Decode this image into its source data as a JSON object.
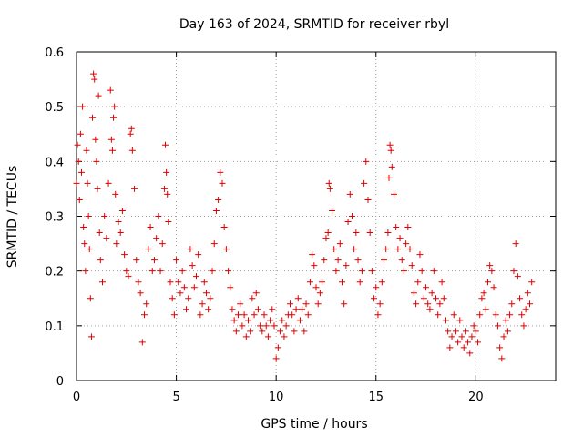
{
  "chart_data": {
    "type": "scatter",
    "title": "Day 163 of 2024, SRMTID for receiver rbyl",
    "xlabel": "GPS time / hours",
    "ylabel": "SRMTID / TECUs",
    "xlim": [
      0,
      24
    ],
    "ylim": [
      0,
      0.6
    ],
    "x_ticks": [
      0,
      5,
      10,
      15,
      20
    ],
    "y_ticks": [
      0,
      0.1,
      0.2,
      0.3,
      0.4,
      0.5,
      0.6
    ],
    "x_tick_labels": [
      "0",
      "5",
      "10",
      "15",
      "20"
    ],
    "y_tick_labels": [
      "0",
      "0.1",
      "0.2",
      "0.3",
      "0.4",
      "0.5",
      "0.6"
    ],
    "grid": true,
    "marker": "+",
    "color": "#e00000",
    "series": [
      {
        "name": "SRMTID",
        "points": [
          [
            0.0,
            0.36
          ],
          [
            0.05,
            0.43
          ],
          [
            0.1,
            0.4
          ],
          [
            0.15,
            0.33
          ],
          [
            0.2,
            0.45
          ],
          [
            0.25,
            0.38
          ],
          [
            0.3,
            0.5
          ],
          [
            0.35,
            0.28
          ],
          [
            0.4,
            0.25
          ],
          [
            0.45,
            0.2
          ],
          [
            0.5,
            0.42
          ],
          [
            0.55,
            0.36
          ],
          [
            0.6,
            0.3
          ],
          [
            0.65,
            0.24
          ],
          [
            0.7,
            0.15
          ],
          [
            0.75,
            0.08
          ],
          [
            0.8,
            0.48
          ],
          [
            0.85,
            0.56
          ],
          [
            0.9,
            0.55
          ],
          [
            0.95,
            0.44
          ],
          [
            1.0,
            0.4
          ],
          [
            1.05,
            0.35
          ],
          [
            1.1,
            0.52
          ],
          [
            1.15,
            0.27
          ],
          [
            1.2,
            0.22
          ],
          [
            1.3,
            0.18
          ],
          [
            1.4,
            0.3
          ],
          [
            1.5,
            0.26
          ],
          [
            1.6,
            0.36
          ],
          [
            1.7,
            0.53
          ],
          [
            1.75,
            0.44
          ],
          [
            1.8,
            0.42
          ],
          [
            1.85,
            0.48
          ],
          [
            1.9,
            0.5
          ],
          [
            1.95,
            0.34
          ],
          [
            2.0,
            0.25
          ],
          [
            2.1,
            0.29
          ],
          [
            2.2,
            0.27
          ],
          [
            2.3,
            0.31
          ],
          [
            2.4,
            0.23
          ],
          [
            2.5,
            0.2
          ],
          [
            2.6,
            0.19
          ],
          [
            2.7,
            0.45
          ],
          [
            2.75,
            0.46
          ],
          [
            2.8,
            0.42
          ],
          [
            2.9,
            0.35
          ],
          [
            3.0,
            0.22
          ],
          [
            3.1,
            0.18
          ],
          [
            3.2,
            0.16
          ],
          [
            3.3,
            0.07
          ],
          [
            3.4,
            0.12
          ],
          [
            3.5,
            0.14
          ],
          [
            3.6,
            0.24
          ],
          [
            3.7,
            0.28
          ],
          [
            3.8,
            0.2
          ],
          [
            3.9,
            0.22
          ],
          [
            4.0,
            0.26
          ],
          [
            4.1,
            0.3
          ],
          [
            4.2,
            0.2
          ],
          [
            4.3,
            0.25
          ],
          [
            4.4,
            0.35
          ],
          [
            4.45,
            0.43
          ],
          [
            4.5,
            0.38
          ],
          [
            4.55,
            0.34
          ],
          [
            4.6,
            0.29
          ],
          [
            4.7,
            0.18
          ],
          [
            4.8,
            0.15
          ],
          [
            4.9,
            0.12
          ],
          [
            5.0,
            0.22
          ],
          [
            5.1,
            0.18
          ],
          [
            5.2,
            0.16
          ],
          [
            5.3,
            0.2
          ],
          [
            5.4,
            0.17
          ],
          [
            5.5,
            0.13
          ],
          [
            5.6,
            0.15
          ],
          [
            5.7,
            0.24
          ],
          [
            5.8,
            0.21
          ],
          [
            5.9,
            0.17
          ],
          [
            6.0,
            0.19
          ],
          [
            6.1,
            0.23
          ],
          [
            6.2,
            0.12
          ],
          [
            6.3,
            0.14
          ],
          [
            6.4,
            0.18
          ],
          [
            6.5,
            0.16
          ],
          [
            6.6,
            0.13
          ],
          [
            6.7,
            0.15
          ],
          [
            6.8,
            0.2
          ],
          [
            6.9,
            0.25
          ],
          [
            7.0,
            0.31
          ],
          [
            7.1,
            0.33
          ],
          [
            7.2,
            0.38
          ],
          [
            7.3,
            0.36
          ],
          [
            7.4,
            0.28
          ],
          [
            7.5,
            0.24
          ],
          [
            7.6,
            0.2
          ],
          [
            7.7,
            0.17
          ],
          [
            7.8,
            0.13
          ],
          [
            7.9,
            0.11
          ],
          [
            8.0,
            0.09
          ],
          [
            8.1,
            0.12
          ],
          [
            8.2,
            0.14
          ],
          [
            8.3,
            0.1
          ],
          [
            8.4,
            0.12
          ],
          [
            8.5,
            0.08
          ],
          [
            8.6,
            0.11
          ],
          [
            8.7,
            0.09
          ],
          [
            8.8,
            0.15
          ],
          [
            8.9,
            0.12
          ],
          [
            9.0,
            0.16
          ],
          [
            9.1,
            0.13
          ],
          [
            9.2,
            0.1
          ],
          [
            9.3,
            0.09
          ],
          [
            9.4,
            0.12
          ],
          [
            9.5,
            0.1
          ],
          [
            9.6,
            0.08
          ],
          [
            9.7,
            0.11
          ],
          [
            9.8,
            0.13
          ],
          [
            9.9,
            0.1
          ],
          [
            10.0,
            0.04
          ],
          [
            10.1,
            0.06
          ],
          [
            10.2,
            0.09
          ],
          [
            10.3,
            0.11
          ],
          [
            10.4,
            0.08
          ],
          [
            10.5,
            0.1
          ],
          [
            10.6,
            0.12
          ],
          [
            10.7,
            0.14
          ],
          [
            10.8,
            0.12
          ],
          [
            10.9,
            0.09
          ],
          [
            11.0,
            0.13
          ],
          [
            11.1,
            0.15
          ],
          [
            11.2,
            0.11
          ],
          [
            11.3,
            0.13
          ],
          [
            11.4,
            0.09
          ],
          [
            11.5,
            0.14
          ],
          [
            11.6,
            0.12
          ],
          [
            11.7,
            0.18
          ],
          [
            11.8,
            0.23
          ],
          [
            11.9,
            0.21
          ],
          [
            12.0,
            0.17
          ],
          [
            12.1,
            0.14
          ],
          [
            12.2,
            0.16
          ],
          [
            12.3,
            0.18
          ],
          [
            12.4,
            0.22
          ],
          [
            12.5,
            0.26
          ],
          [
            12.6,
            0.27
          ],
          [
            12.65,
            0.36
          ],
          [
            12.7,
            0.35
          ],
          [
            12.8,
            0.31
          ],
          [
            12.9,
            0.24
          ],
          [
            13.0,
            0.2
          ],
          [
            13.1,
            0.22
          ],
          [
            13.2,
            0.25
          ],
          [
            13.3,
            0.18
          ],
          [
            13.4,
            0.14
          ],
          [
            13.5,
            0.21
          ],
          [
            13.6,
            0.29
          ],
          [
            13.7,
            0.34
          ],
          [
            13.8,
            0.3
          ],
          [
            13.9,
            0.24
          ],
          [
            14.0,
            0.27
          ],
          [
            14.1,
            0.22
          ],
          [
            14.2,
            0.18
          ],
          [
            14.3,
            0.2
          ],
          [
            14.4,
            0.36
          ],
          [
            14.5,
            0.4
          ],
          [
            14.6,
            0.33
          ],
          [
            14.7,
            0.27
          ],
          [
            14.8,
            0.2
          ],
          [
            14.9,
            0.15
          ],
          [
            15.0,
            0.17
          ],
          [
            15.1,
            0.12
          ],
          [
            15.2,
            0.14
          ],
          [
            15.3,
            0.18
          ],
          [
            15.4,
            0.22
          ],
          [
            15.5,
            0.24
          ],
          [
            15.6,
            0.27
          ],
          [
            15.65,
            0.37
          ],
          [
            15.7,
            0.43
          ],
          [
            15.75,
            0.42
          ],
          [
            15.8,
            0.39
          ],
          [
            15.9,
            0.34
          ],
          [
            16.0,
            0.28
          ],
          [
            16.1,
            0.24
          ],
          [
            16.2,
            0.26
          ],
          [
            16.3,
            0.22
          ],
          [
            16.4,
            0.2
          ],
          [
            16.5,
            0.25
          ],
          [
            16.6,
            0.28
          ],
          [
            16.7,
            0.24
          ],
          [
            16.8,
            0.21
          ],
          [
            16.9,
            0.16
          ],
          [
            17.0,
            0.14
          ],
          [
            17.1,
            0.18
          ],
          [
            17.2,
            0.23
          ],
          [
            17.3,
            0.2
          ],
          [
            17.4,
            0.15
          ],
          [
            17.5,
            0.17
          ],
          [
            17.6,
            0.14
          ],
          [
            17.7,
            0.13
          ],
          [
            17.8,
            0.16
          ],
          [
            17.9,
            0.2
          ],
          [
            18.0,
            0.15
          ],
          [
            18.1,
            0.12
          ],
          [
            18.2,
            0.14
          ],
          [
            18.3,
            0.18
          ],
          [
            18.4,
            0.15
          ],
          [
            18.5,
            0.11
          ],
          [
            18.6,
            0.09
          ],
          [
            18.7,
            0.06
          ],
          [
            18.8,
            0.08
          ],
          [
            18.9,
            0.12
          ],
          [
            19.0,
            0.09
          ],
          [
            19.1,
            0.07
          ],
          [
            19.2,
            0.11
          ],
          [
            19.3,
            0.08
          ],
          [
            19.4,
            0.06
          ],
          [
            19.5,
            0.09
          ],
          [
            19.6,
            0.07
          ],
          [
            19.7,
            0.05
          ],
          [
            19.8,
            0.08
          ],
          [
            19.9,
            0.1
          ],
          [
            20.0,
            0.09
          ],
          [
            20.1,
            0.07
          ],
          [
            20.2,
            0.12
          ],
          [
            20.3,
            0.15
          ],
          [
            20.4,
            0.16
          ],
          [
            20.5,
            0.13
          ],
          [
            20.6,
            0.18
          ],
          [
            20.7,
            0.21
          ],
          [
            20.8,
            0.2
          ],
          [
            20.9,
            0.17
          ],
          [
            21.0,
            0.12
          ],
          [
            21.1,
            0.1
          ],
          [
            21.2,
            0.06
          ],
          [
            21.3,
            0.04
          ],
          [
            21.4,
            0.08
          ],
          [
            21.5,
            0.11
          ],
          [
            21.6,
            0.09
          ],
          [
            21.7,
            0.12
          ],
          [
            21.8,
            0.14
          ],
          [
            21.9,
            0.2
          ],
          [
            22.0,
            0.25
          ],
          [
            22.1,
            0.19
          ],
          [
            22.2,
            0.15
          ],
          [
            22.3,
            0.12
          ],
          [
            22.4,
            0.1
          ],
          [
            22.5,
            0.13
          ],
          [
            22.6,
            0.16
          ],
          [
            22.7,
            0.14
          ],
          [
            22.8,
            0.18
          ]
        ]
      }
    ]
  }
}
